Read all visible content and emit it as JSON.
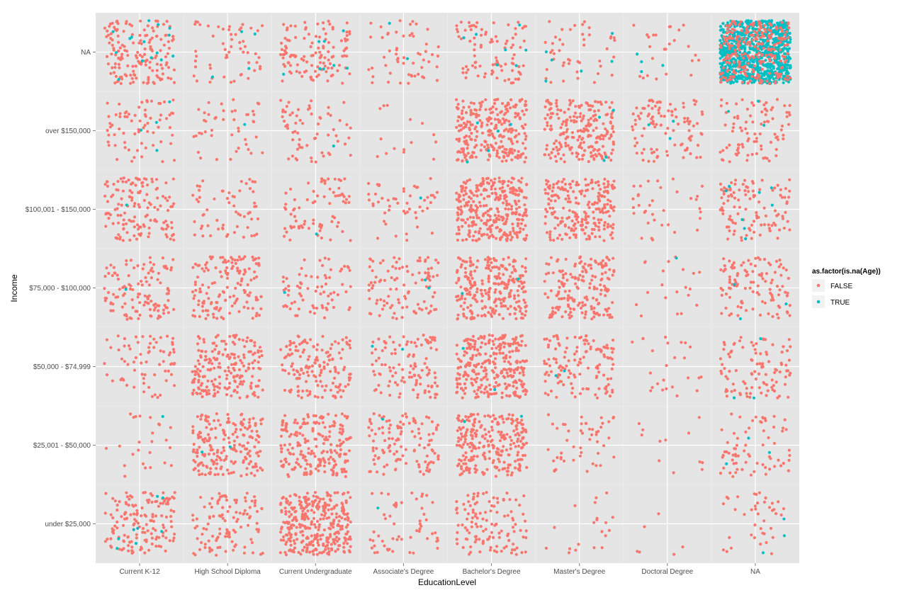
{
  "chart_data": {
    "type": "scatter",
    "jitter": true,
    "title": "",
    "xlabel": "EducationLevel",
    "ylabel": "Income",
    "x_categories": [
      "Current K-12",
      "High School Diploma",
      "Current Undergraduate",
      "Associate's Degree",
      "Bachelor's Degree",
      "Master's Degree",
      "Doctoral Degree",
      "NA"
    ],
    "y_categories": [
      "under $25,000",
      "$25,001 - $50,000",
      "$50,000 - $74,999",
      "$75,000 - $100,000",
      "$100,001 - $150,000",
      "over $150,000",
      "NA"
    ],
    "grid": true,
    "background": "#e5e5e5",
    "legend": {
      "title": "as.factor(is.na(Age))",
      "position": "right",
      "entries": [
        {
          "label": "FALSE",
          "color": "#f8766d"
        },
        {
          "label": "TRUE",
          "color": "#00bfc4"
        }
      ]
    },
    "counts": {
      "columns": [
        "education",
        "income",
        "false_count",
        "true_count"
      ],
      "rows": [
        [
          "Current K-12",
          "under $25,000",
          150,
          8
        ],
        [
          "Current K-12",
          "$25,001 - $50,000",
          25,
          1
        ],
        [
          "Current K-12",
          "$50,000 - $74,999",
          70,
          0
        ],
        [
          "Current K-12",
          "$75,000 - $100,000",
          120,
          1
        ],
        [
          "Current K-12",
          "$100,001 - $150,000",
          140,
          1
        ],
        [
          "Current K-12",
          "over $150,000",
          70,
          4
        ],
        [
          "Current K-12",
          "NA",
          160,
          15
        ],
        [
          "High School Diploma",
          "under $25,000",
          110,
          0
        ],
        [
          "High School Diploma",
          "$25,001 - $50,000",
          200,
          2
        ],
        [
          "High School Diploma",
          "$50,000 - $74,999",
          200,
          0
        ],
        [
          "High School Diploma",
          "$75,000 - $100,000",
          150,
          0
        ],
        [
          "High School Diploma",
          "$100,001 - $150,000",
          60,
          0
        ],
        [
          "High School Diploma",
          "over $150,000",
          45,
          1
        ],
        [
          "High School Diploma",
          "NA",
          55,
          4
        ],
        [
          "Current Undergraduate",
          "under $25,000",
          330,
          0
        ],
        [
          "Current Undergraduate",
          "$25,001 - $50,000",
          210,
          0
        ],
        [
          "Current Undergraduate",
          "$50,000 - $74,999",
          150,
          0
        ],
        [
          "Current Undergraduate",
          "$75,000 - $100,000",
          75,
          1
        ],
        [
          "Current Undergraduate",
          "$100,001 - $150,000",
          75,
          1
        ],
        [
          "Current Undergraduate",
          "over $150,000",
          65,
          1
        ],
        [
          "Current Undergraduate",
          "NA",
          120,
          8
        ],
        [
          "Associate's Degree",
          "under $25,000",
          55,
          1
        ],
        [
          "Associate's Degree",
          "$25,001 - $50,000",
          120,
          1
        ],
        [
          "Associate's Degree",
          "$50,000 - $74,999",
          110,
          2
        ],
        [
          "Associate's Degree",
          "$75,000 - $100,000",
          100,
          2
        ],
        [
          "Associate's Degree",
          "$100,001 - $150,000",
          50,
          1
        ],
        [
          "Associate's Degree",
          "over $150,000",
          15,
          0
        ],
        [
          "Associate's Degree",
          "NA",
          55,
          2
        ],
        [
          "Bachelor's Degree",
          "under $25,000",
          120,
          0
        ],
        [
          "Bachelor's Degree",
          "$25,001 - $50,000",
          260,
          2
        ],
        [
          "Bachelor's Degree",
          "$50,000 - $74,999",
          290,
          2
        ],
        [
          "Bachelor's Degree",
          "$75,000 - $100,000",
          260,
          2
        ],
        [
          "Bachelor's Degree",
          "$100,001 - $150,000",
          320,
          0
        ],
        [
          "Bachelor's Degree",
          "over $150,000",
          270,
          5
        ],
        [
          "Bachelor's Degree",
          "NA",
          90,
          7
        ],
        [
          "Master's Degree",
          "under $25,000",
          20,
          0
        ],
        [
          "Master's Degree",
          "$25,001 - $50,000",
          50,
          0
        ],
        [
          "Master's Degree",
          "$50,000 - $74,999",
          130,
          2
        ],
        [
          "Master's Degree",
          "$75,000 - $100,000",
          180,
          0
        ],
        [
          "Master's Degree",
          "$100,001 - $150,000",
          230,
          0
        ],
        [
          "Master's Degree",
          "over $150,000",
          220,
          4
        ],
        [
          "Master's Degree",
          "NA",
          45,
          6
        ],
        [
          "Doctoral Degree",
          "under $25,000",
          6,
          0
        ],
        [
          "Doctoral Degree",
          "$25,001 - $50,000",
          12,
          0
        ],
        [
          "Doctoral Degree",
          "$50,000 - $74,999",
          25,
          0
        ],
        [
          "Doctoral Degree",
          "$75,000 - $100,000",
          20,
          1
        ],
        [
          "Doctoral Degree",
          "$100,001 - $150,000",
          35,
          0
        ],
        [
          "Doctoral Degree",
          "over $150,000",
          100,
          3
        ],
        [
          "Doctoral Degree",
          "NA",
          25,
          4
        ],
        [
          "NA",
          "under $25,000",
          40,
          3
        ],
        [
          "NA",
          "$25,001 - $50,000",
          70,
          3
        ],
        [
          "NA",
          "$50,000 - $74,999",
          100,
          3
        ],
        [
          "NA",
          "$75,000 - $100,000",
          110,
          3
        ],
        [
          "NA",
          "$100,001 - $150,000",
          110,
          8
        ],
        [
          "NA",
          "over $150,000",
          90,
          3
        ],
        [
          "NA",
          "NA",
          250,
          900
        ]
      ]
    }
  }
}
